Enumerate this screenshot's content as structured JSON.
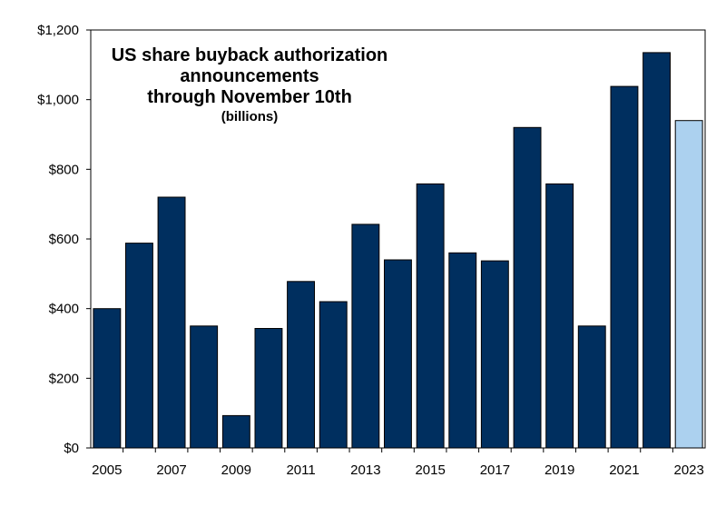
{
  "chart_data": {
    "type": "bar",
    "title_lines": [
      "US share buyback authorization",
      "announcements",
      "through November 10th"
    ],
    "subtitle": "(billions)",
    "categories": [
      "2005",
      "2006",
      "2007",
      "2008",
      "2009",
      "2010",
      "2011",
      "2012",
      "2013",
      "2014",
      "2015",
      "2016",
      "2017",
      "2018",
      "2019",
      "2020",
      "2021",
      "2022",
      "2023"
    ],
    "values": [
      400,
      588,
      720,
      350,
      93,
      343,
      478,
      420,
      642,
      540,
      758,
      560,
      537,
      920,
      758,
      350,
      1038,
      1135,
      940
    ],
    "x_tick_labels": [
      "2005",
      "2007",
      "2009",
      "2011",
      "2013",
      "2015",
      "2017",
      "2019",
      "2021",
      "2023"
    ],
    "y_ticks": [
      {
        "value": 0,
        "label": "$0"
      },
      {
        "value": 200,
        "label": "$200"
      },
      {
        "value": 400,
        "label": "$400"
      },
      {
        "value": 600,
        "label": "$600"
      },
      {
        "value": 800,
        "label": "$800"
      },
      {
        "value": 1000,
        "label": "$1,000"
      },
      {
        "value": 1200,
        "label": "$1,200"
      }
    ],
    "ylim": [
      0,
      1200
    ],
    "xlabel": "",
    "ylabel": "",
    "grid": false,
    "colors": {
      "bar": "#002f5f",
      "highlight_bar": "#acd1ef",
      "highlight_category": "2023",
      "axis": "#000000"
    }
  }
}
